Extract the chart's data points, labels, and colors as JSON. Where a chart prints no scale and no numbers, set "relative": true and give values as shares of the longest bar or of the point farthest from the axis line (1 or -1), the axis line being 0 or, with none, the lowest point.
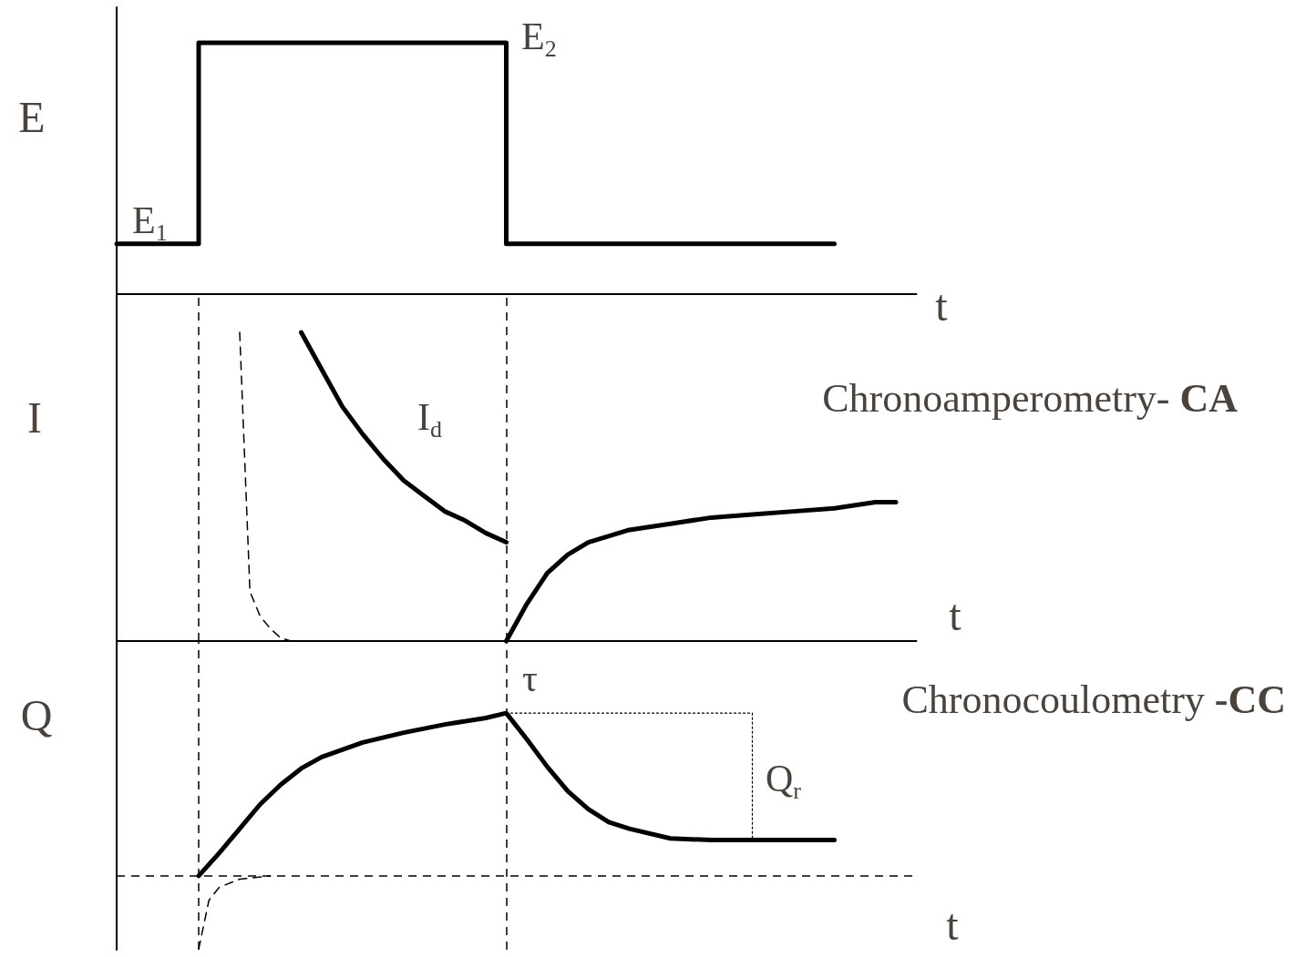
{
  "chart_data": [
    {
      "type": "step",
      "relative": true,
      "marker": "none",
      "ylabel": "E",
      "xlabel": "t",
      "annotations": [
        "E$_{1}$",
        "E$_{2}$"
      ],
      "categories": [
        null,
        null,
        null,
        null,
        null,
        null,
        null,
        null,
        null,
        null,
        null,
        null,
        null,
        null,
        null,
        null,
        null,
        null,
        null,
        null,
        null,
        null,
        null,
        null,
        null,
        null,
        null,
        null,
        null,
        null,
        null,
        null,
        null,
        null,
        null,
        null,
        null,
        null,
        null,
        null,
        null,
        null,
        null,
        null,
        null,
        null,
        null,
        null,
        null,
        null,
        null,
        null,
        null,
        null,
        null,
        null,
        null,
        null,
        null,
        null,
        null,
        null,
        null,
        null,
        null,
        null,
        null,
        null,
        null,
        null,
        null,
        null,
        null,
        null,
        null,
        null,
        null,
        null,
        null
      ],
      "series": [
        {
          "color": "#000000",
          "line_style": "solid",
          "values": [
            0.2,
            0.2,
            0.2,
            0.2,
            0.2,
            0.2,
            0.2,
            0.2,
            1,
            1,
            1,
            1,
            1,
            1,
            1,
            1,
            1,
            1,
            1,
            1,
            1,
            1,
            1,
            1,
            1,
            1,
            1,
            1,
            1,
            1,
            1,
            1,
            1,
            1,
            1,
            1,
            1,
            1,
            0.2,
            0.2,
            0.2,
            0.2,
            0.2,
            0.2,
            0.2,
            0.2,
            0.2,
            0.2,
            0.2,
            0.2,
            0.2,
            0.2,
            0.2,
            0.2,
            0.2,
            0.2,
            0.2,
            0.2,
            0.2,
            0.2,
            0.2,
            0.2,
            0.2,
            0.2,
            0.2,
            0.2,
            0.2,
            0.2,
            0.2,
            0.2,
            0.2,
            null,
            null,
            null,
            null,
            null,
            null,
            null,
            null
          ]
        }
      ]
    },
    {
      "type": "line",
      "relative": true,
      "marker": "none",
      "ylabel": "I",
      "xlabel": "t",
      "title": "Chronoamperometry- CA",
      "annotations": [
        "I$_{d}$"
      ],
      "categories": [
        null,
        null,
        null,
        null,
        null,
        null,
        null,
        null,
        null,
        null,
        null,
        null,
        null,
        null,
        null,
        null,
        null,
        null,
        null,
        null,
        null,
        null,
        null,
        null,
        null,
        null,
        null,
        null,
        null,
        null,
        null,
        null,
        null,
        null,
        null,
        null,
        null,
        null,
        null,
        null,
        null,
        null,
        null,
        null,
        null,
        null,
        null,
        null,
        null,
        null,
        null,
        null,
        null,
        null,
        null,
        null,
        null,
        null,
        null,
        null,
        null,
        null,
        null,
        null,
        null,
        null,
        null,
        null,
        null,
        null,
        null,
        null,
        null,
        null,
        null,
        null,
        null,
        null,
        null
      ],
      "series": [
        {
          "color": "#000000",
          "line_style": "solid",
          "values": [
            null,
            null,
            null,
            null,
            null,
            null,
            null,
            null,
            null,
            null,
            null,
            null,
            null,
            null,
            null,
            null,
            null,
            null,
            1.0,
            null,
            0.88,
            null,
            0.76,
            null,
            0.67,
            null,
            0.59,
            null,
            0.52,
            null,
            0.47,
            null,
            0.42,
            null,
            0.39,
            null,
            0.35,
            null,
            0.32,
            null,
            null,
            null,
            null,
            null,
            null,
            null,
            null,
            null,
            null,
            null,
            null,
            null,
            null,
            null,
            null,
            null,
            null,
            null,
            null,
            null,
            null,
            null,
            null,
            null,
            null,
            null,
            null,
            null,
            null,
            null,
            null,
            null,
            null,
            null,
            null,
            null,
            null,
            null,
            null
          ]
        },
        {
          "color": "#000000",
          "line_style": "solid",
          "values": [
            null,
            null,
            null,
            null,
            null,
            null,
            null,
            null,
            null,
            null,
            null,
            null,
            null,
            null,
            null,
            null,
            null,
            null,
            null,
            null,
            null,
            null,
            null,
            null,
            null,
            null,
            null,
            null,
            null,
            null,
            null,
            null,
            null,
            null,
            null,
            null,
            null,
            null,
            0,
            null,
            0.12,
            null,
            0.22,
            null,
            0.28,
            null,
            0.32,
            null,
            null,
            null,
            0.36,
            null,
            null,
            null,
            0.38,
            null,
            null,
            null,
            0.4,
            null,
            null,
            null,
            0.41,
            null,
            null,
            null,
            0.42,
            null,
            null,
            null,
            0.43,
            null,
            null,
            null,
            0.45,
            null,
            0.45,
            null,
            null
          ]
        },
        {
          "color": "#000000",
          "line_style": "dashed",
          "values": [
            null,
            null,
            null,
            null,
            null,
            null,
            null,
            null,
            null,
            null,
            null,
            null,
            1.0,
            0.16,
            0.08,
            0.04,
            0.01,
            0,
            null,
            null,
            null,
            null,
            null,
            null,
            null,
            null,
            null,
            null,
            null,
            null,
            null,
            null,
            null,
            null,
            null,
            null,
            null,
            null,
            null,
            null,
            null,
            null,
            null,
            null,
            null,
            null,
            null,
            null,
            null,
            null,
            null,
            null,
            null,
            null,
            null,
            null,
            null,
            null,
            null,
            null,
            null,
            null,
            null,
            null,
            null,
            null,
            null,
            null,
            null,
            null,
            null,
            null,
            null,
            null,
            null,
            null,
            null,
            null,
            null
          ]
        }
      ]
    },
    {
      "type": "line",
      "relative": true,
      "marker": "none",
      "ylabel": "Q",
      "xlabel": "t",
      "title": "Chronocoulometry -CC",
      "annotations": [
        "τ",
        "Q$_{r}$"
      ],
      "categories": [
        null,
        null,
        null,
        null,
        null,
        null,
        null,
        null,
        null,
        null,
        null,
        null,
        null,
        null,
        null,
        null,
        null,
        null,
        null,
        null,
        null,
        null,
        null,
        null,
        null,
        null,
        null,
        null,
        null,
        null,
        null,
        null,
        null,
        null,
        null,
        null,
        null,
        null,
        null,
        null,
        null,
        null,
        null,
        null,
        null,
        null,
        null,
        null,
        null,
        null,
        null,
        null,
        null,
        null,
        null,
        null,
        null,
        null,
        null,
        null,
        null,
        null,
        null,
        null,
        null,
        null,
        null,
        null,
        null,
        null,
        null,
        null,
        null,
        null,
        null,
        null,
        null,
        null,
        null
      ],
      "ref_lines": [
        {
          "axis": "y",
          "value": 0,
          "color": "#000000",
          "line_style": "dashed"
        }
      ],
      "series": [
        {
          "color": "#000000",
          "line_style": "solid",
          "values": [
            null,
            null,
            null,
            null,
            null,
            null,
            null,
            null,
            0,
            null,
            0.14,
            null,
            0.29,
            null,
            0.44,
            null,
            0.56,
            null,
            0.66,
            null,
            0.73,
            null,
            null,
            null,
            0.82,
            null,
            null,
            null,
            0.88,
            null,
            null,
            null,
            0.93,
            null,
            null,
            null,
            0.97,
            null,
            1.0,
            null,
            0.84,
            null,
            0.67,
            null,
            0.52,
            null,
            0.41,
            null,
            0.33,
            null,
            0.29,
            null,
            null,
            null,
            0.23,
            null,
            null,
            null,
            0.22,
            null,
            null,
            null,
            0.22,
            null,
            null,
            null,
            0.22,
            null,
            null,
            null,
            0.22,
            null,
            null,
            null,
            null,
            null,
            null,
            null,
            null
          ]
        },
        {
          "color": "#000000",
          "line_style": "dashed",
          "values": [
            null,
            null,
            null,
            null,
            null,
            null,
            null,
            null,
            -0.45,
            -0.15,
            -0.07,
            null,
            -0.02,
            null,
            null,
            0,
            null,
            null,
            null,
            null,
            null,
            null,
            null,
            null,
            null,
            null,
            null,
            null,
            null,
            null,
            null,
            null,
            null,
            null,
            null,
            null,
            null,
            null,
            null,
            null,
            null,
            null,
            null,
            null,
            null,
            null,
            null,
            null,
            null,
            null,
            null,
            null,
            null,
            null,
            null,
            null,
            null,
            null,
            null,
            null,
            null,
            null,
            null,
            null,
            null,
            null,
            null,
            null,
            null,
            null,
            null,
            null,
            null,
            null,
            null,
            null,
            null,
            null,
            null
          ]
        },
        {
          "type": "step",
          "color": "#000000",
          "line_style": "dotted",
          "values": [
            null,
            null,
            null,
            null,
            null,
            null,
            null,
            null,
            null,
            null,
            null,
            null,
            null,
            null,
            null,
            null,
            null,
            null,
            null,
            null,
            null,
            null,
            null,
            null,
            null,
            null,
            null,
            null,
            null,
            null,
            null,
            null,
            null,
            null,
            null,
            null,
            null,
            null,
            1.0,
            null,
            null,
            null,
            null,
            null,
            null,
            null,
            null,
            null,
            null,
            null,
            null,
            null,
            null,
            null,
            null,
            null,
            null,
            null,
            null,
            null,
            null,
            1.0,
            0.22,
            null,
            null,
            null,
            null,
            null,
            null,
            null,
            null,
            null,
            null,
            null,
            null,
            null,
            null,
            null,
            null
          ]
        }
      ]
    }
  ]
}
